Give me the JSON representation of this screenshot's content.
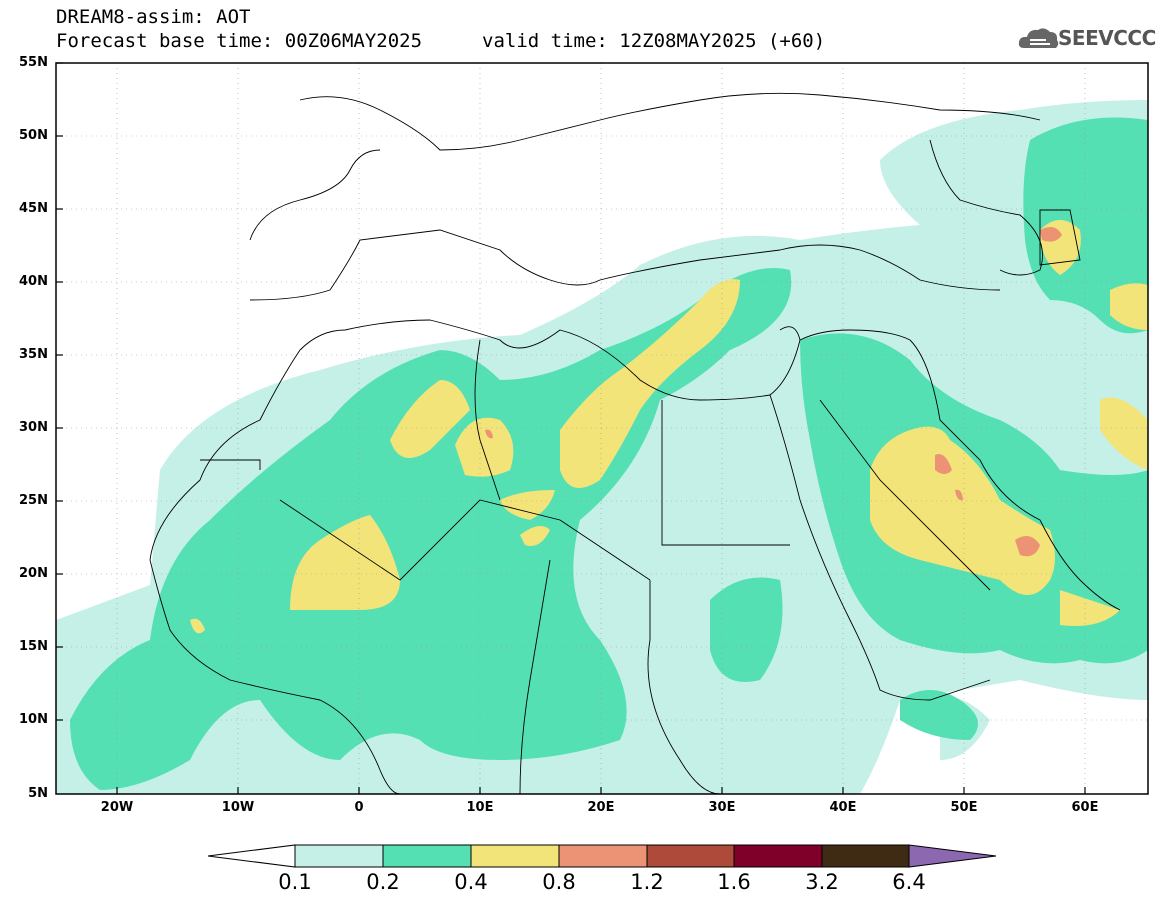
{
  "header": {
    "model_line": "DREAM8-assim: AOT",
    "base_time": "Forecast base time: 00Z06MAY2025",
    "valid_time": "valid time: 12Z08MAY2025 (+60)"
  },
  "logo": {
    "text": "SEEVCCC",
    "icon": "cloud-icon"
  },
  "map": {
    "lat_labels": [
      "55N",
      "50N",
      "45N",
      "40N",
      "35N",
      "30N",
      "25N",
      "20N",
      "15N",
      "10N",
      "5N"
    ],
    "lon_labels": [
      "20W",
      "10W",
      "0",
      "10E",
      "20E",
      "30E",
      "40E",
      "50E",
      "60E"
    ],
    "colors": {
      "c01": "#c5f0e8",
      "c02": "#55e0b4",
      "c04": "#f3e47a",
      "c08": "#eb9374",
      "c12": "#ad4a39",
      "c16": "#7f0028",
      "c32": "#3f2b14",
      "c64": "#8c68b1"
    }
  },
  "colorbar": {
    "labels": [
      "0.1",
      "0.2",
      "0.4",
      "0.8",
      "1.2",
      "1.6",
      "3.2",
      "6.4"
    ],
    "colors": [
      "#c5f0e8",
      "#55e0b4",
      "#f3e47a",
      "#eb9374",
      "#ad4a39",
      "#7f0028",
      "#3f2b14"
    ],
    "high_color": "#8c68b1",
    "low_color": "#ffffff"
  }
}
